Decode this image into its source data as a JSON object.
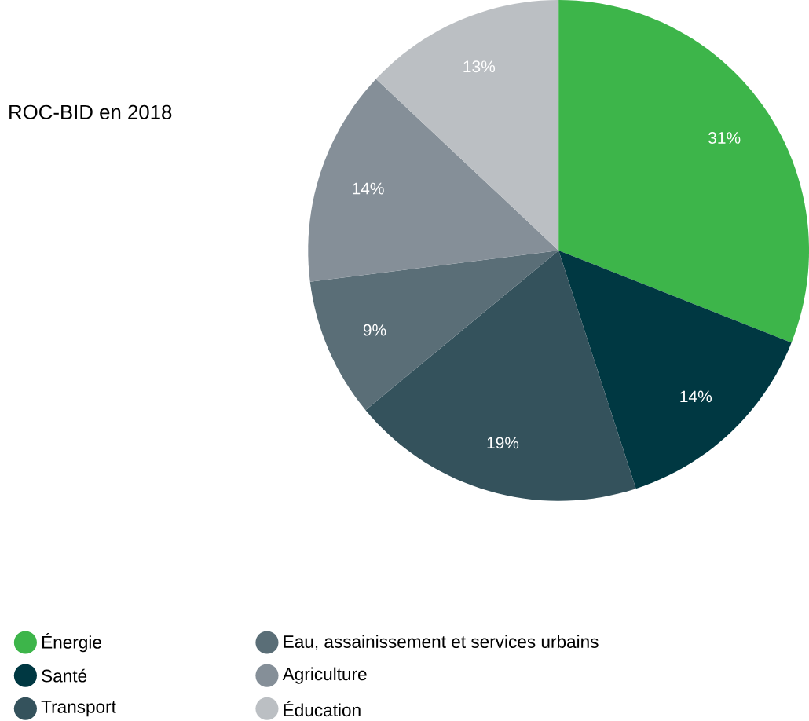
{
  "chart_data": {
    "type": "pie",
    "title": "ROC-BID en 2018",
    "categories": [
      "Énergie",
      "Santé",
      "Transport",
      "Eau, assainissement et services urbains",
      "Agriculture",
      "Éducation"
    ],
    "values": [
      31,
      14,
      19,
      9,
      14,
      13
    ],
    "value_labels": [
      "31%",
      "14%",
      "19%",
      "9%",
      "14%",
      "13%"
    ],
    "colors": [
      "#3db54a",
      "#003842",
      "#34525c",
      "#5a6e77",
      "#858f98",
      "#bbbfc3"
    ],
    "legend": "bottom"
  }
}
